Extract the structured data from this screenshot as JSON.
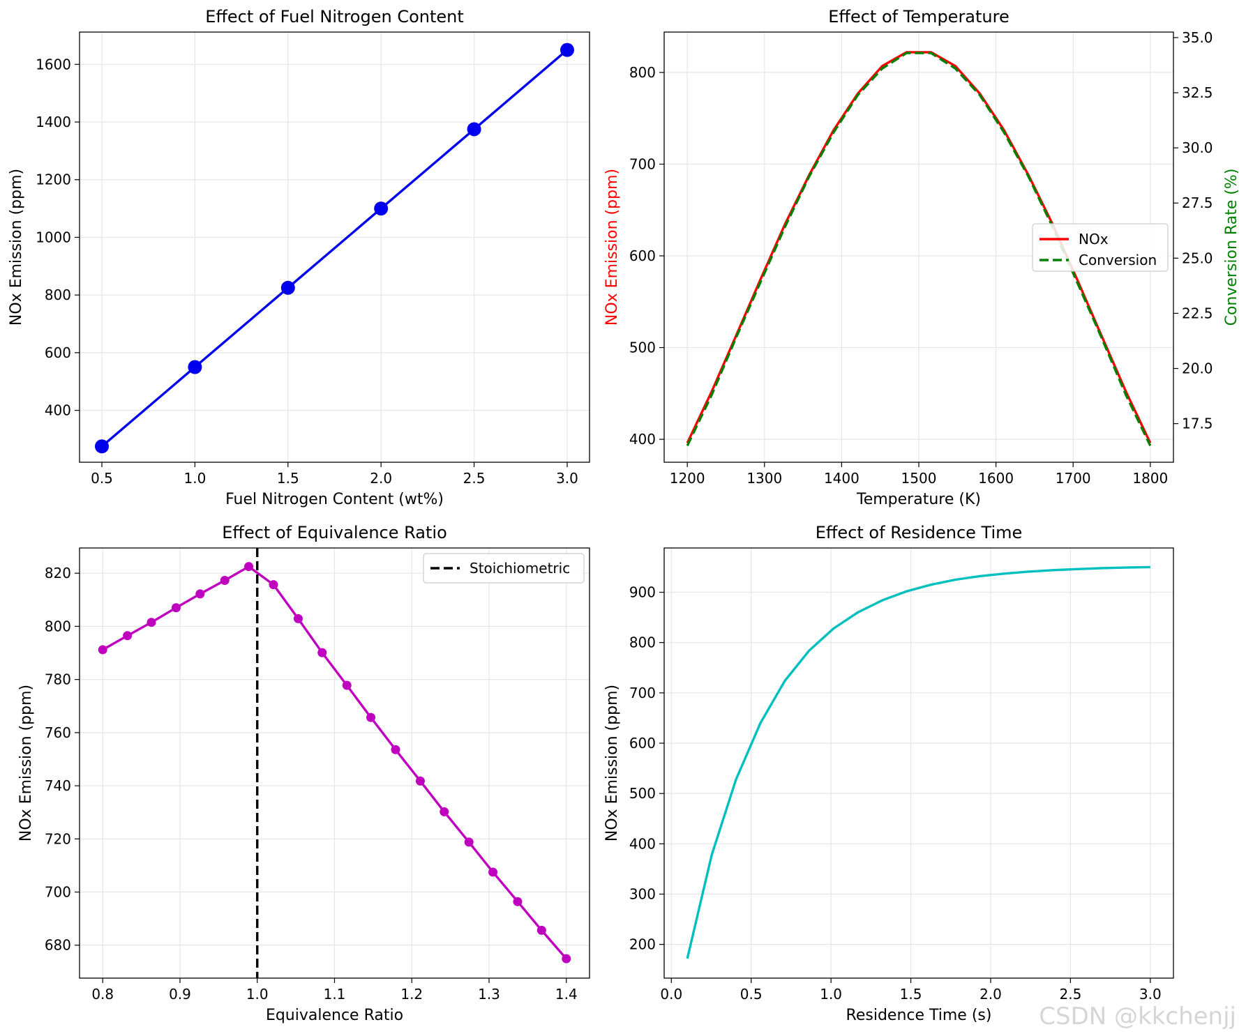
{
  "watermark": "CSDN @kkchenjj",
  "chart_data": [
    {
      "id": "fuel",
      "type": "line",
      "title": "Effect of Fuel Nitrogen Content",
      "xlabel": "Fuel Nitrogen Content (wt%)",
      "ylabel": "NOx Emission (ppm)",
      "xlim": [
        0.38,
        3.12
      ],
      "ylim": [
        220,
        1712
      ],
      "xticks": [
        0.5,
        1.0,
        1.5,
        2.0,
        2.5,
        3.0
      ],
      "xtick_labels": [
        "0.5",
        "1.0",
        "1.5",
        "2.0",
        "2.5",
        "3.0"
      ],
      "yticks": [
        400,
        600,
        800,
        1000,
        1200,
        1400,
        1600
      ],
      "ytick_labels": [
        "400",
        "600",
        "800",
        "1000",
        "1200",
        "1400",
        "1600"
      ],
      "grid": true,
      "series": [
        {
          "name": "NOx",
          "color": "#0000ee",
          "marker": "large-dot",
          "x": [
            0.5,
            1.0,
            1.5,
            2.0,
            2.5,
            3.0
          ],
          "y": [
            275,
            550,
            825,
            1100,
            1375,
            1650
          ]
        }
      ]
    },
    {
      "id": "temp",
      "type": "line",
      "title": "Effect of Temperature",
      "xlabel": "Temperature (K)",
      "ylabel": "NOx Emission (ppm)",
      "ylabel_color": "#ff0000",
      "y2label": "Conversion Rate (%)",
      "y2label_color": "#008000",
      "xlim": [
        1170,
        1830
      ],
      "ylim": [
        375,
        844
      ],
      "y2lim": [
        15.75,
        35.25
      ],
      "xticks": [
        1200,
        1300,
        1400,
        1500,
        1600,
        1700,
        1800
      ],
      "xtick_labels": [
        "1200",
        "1300",
        "1400",
        "1500",
        "1600",
        "1700",
        "1800"
      ],
      "yticks": [
        400,
        500,
        600,
        700,
        800
      ],
      "ytick_labels": [
        "400",
        "500",
        "600",
        "700",
        "800"
      ],
      "y2ticks": [
        17.5,
        20.0,
        22.5,
        25.0,
        27.5,
        30.0,
        32.5,
        35.0
      ],
      "y2tick_labels": [
        "17.5",
        "20.0",
        "22.5",
        "25.0",
        "27.5",
        "30.0",
        "32.5",
        "35.0"
      ],
      "grid": true,
      "legend": {
        "position": "center-right",
        "entries": [
          "NOx",
          "Conversion"
        ]
      },
      "series": [
        {
          "name": "NOx",
          "color": "#ff0000",
          "style": "solid",
          "axis": "left",
          "x": [
            1200,
            1231.6,
            1263.2,
            1294.7,
            1326.3,
            1357.9,
            1389.5,
            1421.1,
            1452.6,
            1484.2,
            1515.8,
            1547.4,
            1578.9,
            1610.5,
            1642.1,
            1673.7,
            1705.3,
            1736.8,
            1768.4,
            1800
          ],
          "y": [
            396,
            452,
            513,
            574,
            634,
            688,
            737,
            777,
            807,
            822,
            822,
            807,
            777,
            737,
            688,
            634,
            574,
            513,
            452,
            396
          ]
        },
        {
          "name": "Conversion",
          "color": "#008000",
          "style": "dashed",
          "axis": "right",
          "x": [
            1200,
            1231.6,
            1263.2,
            1294.7,
            1326.3,
            1357.9,
            1389.5,
            1421.1,
            1452.6,
            1484.2,
            1515.8,
            1547.4,
            1578.9,
            1610.5,
            1642.1,
            1673.7,
            1705.3,
            1736.8,
            1768.4,
            1800
          ],
          "y": [
            16.5,
            18.8,
            21.4,
            23.9,
            26.4,
            28.7,
            30.7,
            32.4,
            33.6,
            34.3,
            34.3,
            33.6,
            32.4,
            30.7,
            28.7,
            26.4,
            23.9,
            21.4,
            18.8,
            16.5
          ]
        }
      ]
    },
    {
      "id": "equiv",
      "type": "line",
      "title": "Effect of Equivalence Ratio",
      "xlabel": "Equivalence Ratio",
      "ylabel": "NOx Emission (ppm)",
      "xlim": [
        0.77,
        1.43
      ],
      "ylim": [
        667.6,
        829.5
      ],
      "xticks": [
        0.8,
        0.9,
        1.0,
        1.1,
        1.2,
        1.3,
        1.4
      ],
      "xtick_labels": [
        "0.8",
        "0.9",
        "1.0",
        "1.1",
        "1.2",
        "1.3",
        "1.4"
      ],
      "yticks": [
        680,
        700,
        720,
        740,
        760,
        780,
        800,
        820
      ],
      "ytick_labels": [
        "680",
        "700",
        "720",
        "740",
        "760",
        "780",
        "800",
        "820"
      ],
      "grid": true,
      "vline": {
        "x": 1.0,
        "label": "Stoichiometric",
        "color": "#000000"
      },
      "legend": {
        "position": "top-right",
        "entries": [
          "Stoichiometric"
        ]
      },
      "series": [
        {
          "name": "NOx",
          "color": "#bf00bf",
          "marker": "dot",
          "x": [
            0.8,
            0.832,
            0.863,
            0.895,
            0.926,
            0.958,
            0.989,
            1.021,
            1.053,
            1.084,
            1.116,
            1.147,
            1.179,
            1.211,
            1.242,
            1.274,
            1.305,
            1.337,
            1.368,
            1.4
          ],
          "y": [
            791.2,
            796.5,
            801.5,
            807.0,
            812.2,
            817.3,
            822.5,
            815.7,
            802.9,
            790.1,
            777.8,
            765.7,
            753.6,
            741.8,
            730.2,
            718.8,
            707.5,
            696.4,
            685.6,
            674.9
          ]
        }
      ]
    },
    {
      "id": "residence",
      "type": "line",
      "title": "Effect of Residence Time",
      "xlabel": "Residence Time (s)",
      "ylabel": "NOx Emission (ppm)",
      "xlim": [
        -0.045,
        3.145
      ],
      "ylim": [
        133,
        988
      ],
      "xticks": [
        0.0,
        0.5,
        1.0,
        1.5,
        2.0,
        2.5,
        3.0
      ],
      "xtick_labels": [
        "0.0",
        "0.5",
        "1.0",
        "1.5",
        "2.0",
        "2.5",
        "3.0"
      ],
      "yticks": [
        200,
        300,
        400,
        500,
        600,
        700,
        800,
        900
      ],
      "ytick_labels": [
        "200",
        "300",
        "400",
        "500",
        "600",
        "700",
        "800",
        "900"
      ],
      "grid": true,
      "series": [
        {
          "name": "NOx",
          "color": "#00bfbf",
          "x": [
            0.1,
            0.253,
            0.405,
            0.558,
            0.711,
            0.863,
            1.016,
            1.168,
            1.321,
            1.474,
            1.626,
            1.779,
            1.932,
            2.084,
            2.237,
            2.389,
            2.542,
            2.695,
            2.847,
            3.0
          ],
          "y": [
            172,
            378,
            528,
            640,
            724,
            784,
            828,
            860,
            884,
            902,
            915,
            925,
            932,
            937,
            941,
            944,
            946,
            948,
            949,
            950
          ]
        }
      ]
    }
  ]
}
